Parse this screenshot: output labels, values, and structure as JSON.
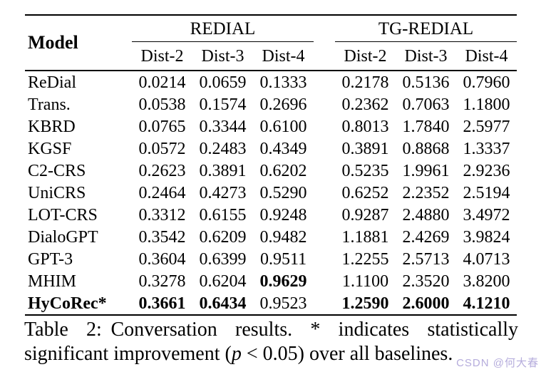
{
  "table": {
    "model_header": "Model",
    "groups": [
      {
        "label": "REDIAL",
        "columns": [
          "Dist-2",
          "Dist-3",
          "Dist-4"
        ]
      },
      {
        "label": "TG-REDIAL",
        "columns": [
          "Dist-2",
          "Dist-3",
          "Dist-4"
        ]
      }
    ],
    "rows": [
      {
        "model": "ReDial",
        "bold_model": false,
        "values": [
          "0.0214",
          "0.0659",
          "0.1333",
          "0.2178",
          "0.5136",
          "0.7960"
        ],
        "bold": [
          false,
          false,
          false,
          false,
          false,
          false
        ]
      },
      {
        "model": "Trans.",
        "bold_model": false,
        "values": [
          "0.0538",
          "0.1574",
          "0.2696",
          "0.2362",
          "0.7063",
          "1.1800"
        ],
        "bold": [
          false,
          false,
          false,
          false,
          false,
          false
        ]
      },
      {
        "model": "KBRD",
        "bold_model": false,
        "values": [
          "0.0765",
          "0.3344",
          "0.6100",
          "0.8013",
          "1.7840",
          "2.5977"
        ],
        "bold": [
          false,
          false,
          false,
          false,
          false,
          false
        ]
      },
      {
        "model": "KGSF",
        "bold_model": false,
        "values": [
          "0.0572",
          "0.2483",
          "0.4349",
          "0.3891",
          "0.8868",
          "1.3337"
        ],
        "bold": [
          false,
          false,
          false,
          false,
          false,
          false
        ]
      },
      {
        "model": "C2-CRS",
        "bold_model": false,
        "values": [
          "0.2623",
          "0.3891",
          "0.6202",
          "0.5235",
          "1.9961",
          "2.9236"
        ],
        "bold": [
          false,
          false,
          false,
          false,
          false,
          false
        ]
      },
      {
        "model": "UniCRS",
        "bold_model": false,
        "values": [
          "0.2464",
          "0.4273",
          "0.5290",
          "0.6252",
          "2.2352",
          "2.5194"
        ],
        "bold": [
          false,
          false,
          false,
          false,
          false,
          false
        ]
      },
      {
        "model": "LOT-CRS",
        "bold_model": false,
        "values": [
          "0.3312",
          "0.6155",
          "0.9248",
          "0.9287",
          "2.4880",
          "3.4972"
        ],
        "bold": [
          false,
          false,
          false,
          false,
          false,
          false
        ]
      },
      {
        "model": "DialoGPT",
        "bold_model": false,
        "values": [
          "0.3542",
          "0.6209",
          "0.9482",
          "1.1881",
          "2.4269",
          "3.9824"
        ],
        "bold": [
          false,
          false,
          false,
          false,
          false,
          false
        ]
      },
      {
        "model": "GPT-3",
        "bold_model": false,
        "values": [
          "0.3604",
          "0.6399",
          "0.9511",
          "1.2255",
          "2.5713",
          "4.0713"
        ],
        "bold": [
          false,
          false,
          false,
          false,
          false,
          false
        ]
      },
      {
        "model": "MHIM",
        "bold_model": false,
        "values": [
          "0.3278",
          "0.6204",
          "0.9629",
          "1.1100",
          "2.3520",
          "3.8200"
        ],
        "bold": [
          false,
          false,
          true,
          false,
          false,
          false
        ]
      },
      {
        "model": "HyCoRec*",
        "bold_model": true,
        "values": [
          "0.3661",
          "0.6434",
          "0.9523",
          "1.2590",
          "2.6000",
          "4.1210"
        ],
        "bold": [
          true,
          true,
          false,
          true,
          true,
          true
        ]
      }
    ]
  },
  "chart_data": {
    "type": "table",
    "title": "Table 2: Conversation results",
    "categories": [
      "ReDial",
      "Trans.",
      "KBRD",
      "KGSF",
      "C2-CRS",
      "UniCRS",
      "LOT-CRS",
      "DialoGPT",
      "GPT-3",
      "MHIM",
      "HyCoRec*"
    ],
    "series": [
      {
        "name": "REDIAL Dist-2",
        "values": [
          0.0214,
          0.0538,
          0.0765,
          0.0572,
          0.2623,
          0.2464,
          0.3312,
          0.3542,
          0.3604,
          0.3278,
          0.3661
        ]
      },
      {
        "name": "REDIAL Dist-3",
        "values": [
          0.0659,
          0.1574,
          0.3344,
          0.2483,
          0.3891,
          0.4273,
          0.6155,
          0.6209,
          0.6399,
          0.6204,
          0.6434
        ]
      },
      {
        "name": "REDIAL Dist-4",
        "values": [
          0.1333,
          0.2696,
          0.61,
          0.4349,
          0.6202,
          0.529,
          0.9248,
          0.9482,
          0.9511,
          0.9629,
          0.9523
        ]
      },
      {
        "name": "TG-REDIAL Dist-2",
        "values": [
          0.2178,
          0.2362,
          0.8013,
          0.3891,
          0.5235,
          0.6252,
          0.9287,
          1.1881,
          1.2255,
          1.11,
          1.259
        ]
      },
      {
        "name": "TG-REDIAL Dist-3",
        "values": [
          0.5136,
          0.7063,
          1.784,
          0.8868,
          1.9961,
          2.2352,
          2.488,
          2.4269,
          2.5713,
          2.352,
          2.6
        ]
      },
      {
        "name": "TG-REDIAL Dist-4",
        "values": [
          0.796,
          1.18,
          2.5977,
          1.3337,
          2.9236,
          2.5194,
          3.4972,
          3.9824,
          4.0713,
          3.82,
          4.121
        ]
      }
    ]
  },
  "caption": {
    "label": "Table 2:",
    "before": "Conversation results. * indicates statistically significant improvement (",
    "p": "p",
    "after": " < 0.05) over all baselines."
  },
  "watermark": {
    "text": "CSDN @何大春",
    "color": "#b5acdc"
  }
}
